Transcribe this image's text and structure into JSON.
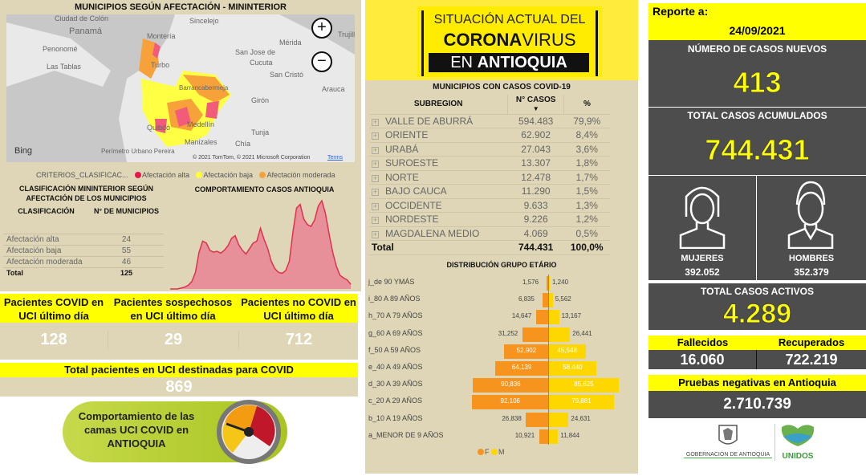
{
  "map": {
    "title": "MUNICIPIOS SEGÚN AFECTACIÓN - MININTERIOR",
    "places": [
      "Ciudad de Colón",
      "Panamá",
      "Penonomé",
      "Las Tablas",
      "Montería",
      "Turbo",
      "Sincelejo",
      "San Jose de",
      "Cucuta",
      "San Cristó",
      "Mérida",
      "Trujillo",
      "Arauca",
      "Girón",
      "Barrancabermeja",
      "Quibdó",
      "Medellín",
      "Tunja",
      "Manizales",
      "Chía",
      "Perímetro Urbano Pereira"
    ],
    "attribution": "© 2021 TomTom, © 2021 Microsoft Corporation",
    "terms": "Terms",
    "bing": "Bing",
    "zoom_in": "+",
    "zoom_out": "−"
  },
  "legend": {
    "label": "CRITERIOS_CLASIFICAC...",
    "items": [
      {
        "label": "Afectación alta",
        "color": "#e8174a"
      },
      {
        "label": "Afectación baja",
        "color": "#ffff33"
      },
      {
        "label": "Afectación moderada",
        "color": "#f7a13a"
      }
    ]
  },
  "classification": {
    "title": "CLASIFICACIÓN MININTERIOR SEGÚN AFECTACIÓN DE LOS MUNICIPIOS",
    "col1": "CLASIFICACIÓN",
    "col2": "N° DE MUNICIPIOS",
    "rows": [
      {
        "label": "Afectación alta",
        "value": "24"
      },
      {
        "label": "Afectación baja",
        "value": "55"
      },
      {
        "label": "Afectación moderada",
        "value": "46"
      }
    ],
    "total_label": "Total",
    "total_value": "125"
  },
  "trend": {
    "title": "COMPORTAMIENTO CASOS ANTIOQUIA"
  },
  "uci": {
    "items": [
      {
        "label": "Pacientes COVID en UCI último día",
        "value": "128"
      },
      {
        "label": "Pacientes sospechosos en UCI último día",
        "value": "29"
      },
      {
        "label": "Pacientes no COVID en UCI último día",
        "value": "712"
      }
    ],
    "total_label": "Total pacientes en UCI destinadas para COVID",
    "total_value": "869",
    "banner": "Comportamiento de las camas UCI COVID en ANTIOQUIA"
  },
  "header": {
    "line1": "SITUACIÓN ACTUAL DEL",
    "line2a": "CORONA",
    "line2b": "VIRUS",
    "line3a": "EN ",
    "line3b": "ANTIOQUIA"
  },
  "subregions": {
    "title": "MUNICIPIOS CON CASOS COVID-19",
    "col1": "SUBREGION",
    "col2": "N° CASOS",
    "col3": "%",
    "rows": [
      {
        "name": "VALLE DE ABURRÁ",
        "cases": "594.483",
        "pct": "79,9%"
      },
      {
        "name": "ORIENTE",
        "cases": "62.902",
        "pct": "8,4%"
      },
      {
        "name": "URABÁ",
        "cases": "27.043",
        "pct": "3,6%"
      },
      {
        "name": "SUROESTE",
        "cases": "13.307",
        "pct": "1,8%"
      },
      {
        "name": "NORTE",
        "cases": "12.478",
        "pct": "1,7%"
      },
      {
        "name": "BAJO CAUCA",
        "cases": "11.290",
        "pct": "1,5%"
      },
      {
        "name": "OCCIDENTE",
        "cases": "9.633",
        "pct": "1,3%"
      },
      {
        "name": "NORDESTE",
        "cases": "9.226",
        "pct": "1,2%"
      },
      {
        "name": "MAGDALENA MEDIO",
        "cases": "4.069",
        "pct": "0,5%"
      }
    ],
    "total_label": "Total",
    "total_cases": "744.431",
    "total_pct": "100,0%"
  },
  "report": {
    "label": "Reporte a:",
    "date": "24/09/2021",
    "new_label": "NÚMERO DE CASOS NUEVOS",
    "new_value": "413",
    "acc_label": "TOTAL CASOS ACUMULADOS",
    "acc_value": "744.431",
    "women_label": "MUJERES",
    "women_value": "392.052",
    "men_label": "HOMBRES",
    "men_value": "352.379",
    "active_label": "TOTAL CASOS ACTIVOS",
    "active_value": "4.289",
    "deaths_label": "Fallecidos",
    "deaths_value": "16.060",
    "recovered_label": "Recuperados",
    "recovered_value": "722.219",
    "neg_label": "Pruebas negativas en Antioquia",
    "neg_value": "2.710.739"
  },
  "logos": {
    "gov": "GOBERNACIÓN DE ANTIOQUIA",
    "unidos": "UNIDOS"
  },
  "chart_data": [
    {
      "type": "bar",
      "orientation": "horizontal-pyramid",
      "title": "DISTRIBUCIÓN GRUPO ETÁRIO",
      "categories": [
        "j_de 90 YMÁS",
        "i_80 A 89 AÑOS",
        "h_70 A 79 AÑOS",
        "g_60 A 69 AÑOS",
        "f_50 A 59 AÑOS",
        "e_40 A 49 AÑOS",
        "d_30 A 39 AÑOS",
        "c_20 A 29 AÑOS",
        "b_10 A 19 AÑOS",
        "a_MENOR DE 9 AÑOS"
      ],
      "series": [
        {
          "name": "F",
          "color": "#f7941d",
          "values": [
            1576,
            6835,
            14647,
            31252,
            52902,
            64139,
            90836,
            92106,
            26838,
            10921
          ],
          "labels": [
            "1,576",
            "6,835",
            "14,647",
            "31,252",
            "52,902",
            "64,139",
            "90,836",
            "92,106",
            "26,838",
            "10,921"
          ]
        },
        {
          "name": "M",
          "color": "#ffd700",
          "values": [
            1240,
            5562,
            13167,
            26441,
            45548,
            58440,
            85625,
            79881,
            24631,
            11844
          ],
          "labels": [
            "1,240",
            "5,562",
            "13,167",
            "26,441",
            "45,548",
            "58,440",
            "85,625",
            "79,881",
            "24,631",
            "11,844"
          ]
        }
      ],
      "legend": "bottom"
    },
    {
      "type": "area",
      "title": "COMPORTAMIENTO CASOS ANTIOQUIA",
      "color": "#e0304e",
      "values": [
        0,
        0,
        0,
        1,
        2,
        4,
        8,
        18,
        40,
        52,
        50,
        42,
        40,
        41,
        39,
        42,
        47,
        55,
        58,
        48,
        42,
        38,
        44,
        50,
        52,
        66,
        54,
        44,
        30,
        22,
        18,
        17,
        20,
        30,
        62,
        88,
        92,
        76,
        70,
        68,
        75,
        90,
        96,
        82,
        60,
        40,
        25,
        15,
        12,
        10,
        5
      ]
    }
  ]
}
